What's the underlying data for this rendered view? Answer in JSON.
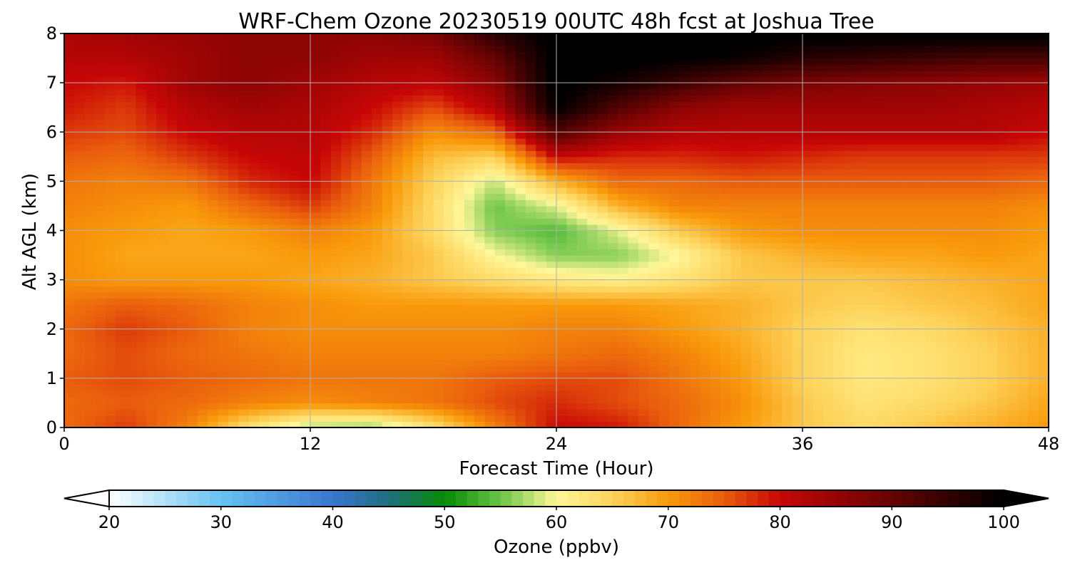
{
  "chart_data": {
    "type": "heatmap",
    "title": "WRF-Chem Ozone  20230519 00UTC 48h fcst at Joshua Tree",
    "xlabel": "Forecast Time (Hour)",
    "ylabel": "Alt AGL (km)",
    "xlim": [
      0,
      48
    ],
    "ylim": [
      0,
      8
    ],
    "x_ticks": [
      0,
      12,
      24,
      36,
      48
    ],
    "y_ticks": [
      0,
      1,
      2,
      3,
      4,
      5,
      6,
      7,
      8
    ],
    "grid": true,
    "colorbar": {
      "label": "Ozone  (ppbv)",
      "range": [
        20,
        100
      ],
      "ticks": [
        20,
        30,
        40,
        50,
        60,
        70,
        80,
        90,
        100
      ],
      "extend": "both",
      "colors": [
        {
          "value": 20,
          "color": "#ffffff"
        },
        {
          "value": 30,
          "color": "#66c2f2"
        },
        {
          "value": 40,
          "color": "#3a76cf"
        },
        {
          "value": 45,
          "color": "#1f6e7e"
        },
        {
          "value": 50,
          "color": "#058a05"
        },
        {
          "value": 55,
          "color": "#6ac447"
        },
        {
          "value": 60,
          "color": "#fff799"
        },
        {
          "value": 65,
          "color": "#fdd35b"
        },
        {
          "value": 70,
          "color": "#f99a0a"
        },
        {
          "value": 75,
          "color": "#e95d0d"
        },
        {
          "value": 80,
          "color": "#c80606"
        },
        {
          "value": 90,
          "color": "#660303"
        },
        {
          "value": 100,
          "color": "#000000"
        }
      ]
    },
    "altitudes_km": [
      0,
      0.5,
      1,
      1.5,
      2,
      2.5,
      3,
      3.5,
      4,
      4.5,
      5,
      5.5,
      6,
      6.5,
      7,
      7.5,
      8
    ],
    "hours": [
      0,
      3,
      6,
      9,
      12,
      15,
      18,
      21,
      24,
      27,
      30,
      33,
      36,
      39,
      42,
      45,
      48
    ],
    "ozone_ppbv": [
      [
        74,
        77,
        72,
        63,
        57,
        56,
        63,
        72,
        80,
        79,
        74,
        70,
        66,
        64,
        66,
        68,
        70
      ],
      [
        74,
        75,
        74,
        72,
        71,
        72,
        73,
        76,
        78,
        76,
        74,
        71,
        66,
        63,
        64,
        66,
        69
      ],
      [
        75,
        76,
        75,
        74,
        73,
        73,
        73,
        75,
        76,
        76,
        73,
        70,
        65,
        62,
        63,
        65,
        68
      ],
      [
        74,
        76,
        74,
        73,
        72,
        72,
        72,
        72,
        73,
        74,
        72,
        69,
        65,
        62,
        63,
        65,
        68
      ],
      [
        74,
        77,
        75,
        72,
        71,
        71,
        71,
        71,
        72,
        72,
        70,
        68,
        65,
        63,
        64,
        66,
        68
      ],
      [
        73,
        75,
        74,
        72,
        71,
        70,
        70,
        70,
        70,
        70,
        69,
        68,
        66,
        65,
        66,
        67,
        69
      ],
      [
        71,
        70,
        70,
        70,
        69,
        68,
        66,
        64,
        62,
        61,
        63,
        66,
        66,
        66,
        67,
        68,
        69
      ],
      [
        71,
        69,
        69,
        69,
        70,
        69,
        66,
        60,
        56,
        56,
        60,
        66,
        68,
        69,
        69,
        70,
        69
      ],
      [
        71,
        70,
        69,
        70,
        72,
        70,
        64,
        56,
        54,
        59,
        66,
        70,
        71,
        71,
        71,
        71,
        70
      ],
      [
        72,
        71,
        70,
        74,
        77,
        72,
        64,
        55,
        59,
        68,
        72,
        72,
        72,
        72,
        72,
        72,
        71
      ],
      [
        73,
        72,
        73,
        78,
        80,
        73,
        65,
        58,
        68,
        74,
        74,
        75,
        75,
        75,
        75,
        75,
        74
      ],
      [
        75,
        74,
        77,
        80,
        81,
        75,
        67,
        65,
        80,
        78,
        78,
        79,
        78,
        77,
        77,
        77,
        77
      ],
      [
        77,
        76,
        80,
        82,
        82,
        78,
        71,
        74,
        92,
        85,
        82,
        82,
        82,
        82,
        82,
        82,
        80
      ],
      [
        79,
        77,
        82,
        84,
        83,
        80,
        76,
        82,
        100,
        92,
        86,
        84,
        84,
        84,
        84,
        83,
        82
      ],
      [
        80,
        79,
        84,
        86,
        84,
        82,
        81,
        86,
        101,
        98,
        94,
        90,
        88,
        87,
        86,
        85,
        84
      ],
      [
        82,
        82,
        84,
        86,
        86,
        84,
        84,
        90,
        101,
        101,
        100,
        99,
        96,
        95,
        94,
        93,
        93
      ],
      [
        83,
        84,
        85,
        86,
        86,
        86,
        88,
        96,
        101,
        101,
        101,
        101,
        101,
        101,
        101,
        101,
        101
      ]
    ]
  }
}
